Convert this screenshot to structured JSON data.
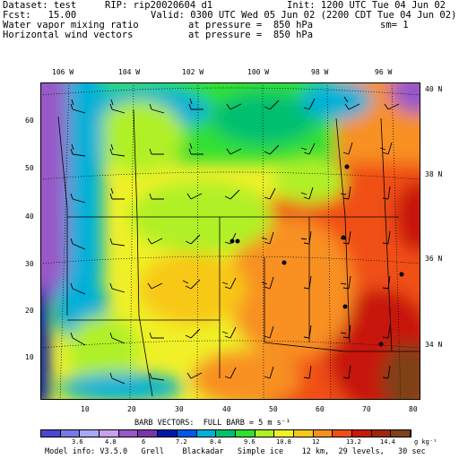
{
  "header": {
    "dataset": "Dataset: test",
    "rip": "RIP: rip20020604 d1",
    "init": "Init: 1200 UTC Tue 04 Jun 02",
    "fcst": "Fcst:   15.00",
    "valid": "Valid: 0300 UTC Wed 05 Jun 02 (2200 CDT Tue 04 Jun 02)",
    "field1": "Water vapor mixing ratio",
    "pressure1": "at pressure =  850 hPa",
    "sm": "sm= 1",
    "field2": "Horizontal wind vectors",
    "pressure2": "at pressure =  850 hPa"
  },
  "map": {
    "lon_labels": [
      "106 W",
      "104 W",
      "102 W",
      "100 W",
      "98 W",
      "96 W"
    ],
    "lat_labels": [
      "40 N",
      "38 N",
      "36 N",
      "34 N"
    ],
    "y_ticks": [
      "60",
      "50",
      "40",
      "30",
      "20",
      "10"
    ],
    "x_ticks": [
      "10",
      "20",
      "30",
      "40",
      "50",
      "60",
      "70",
      "80"
    ]
  },
  "colorbar": {
    "title": "BARB VECTORS:  FULL BARB = 5 m s⁻¹",
    "colors": [
      "#4848d0",
      "#7878e8",
      "#a8a8f8",
      "#c8a0f0",
      "#9858c8",
      "#7838a8",
      "#0018a8",
      "#0058e8",
      "#00b0d8",
      "#00c070",
      "#30e030",
      "#b0f028",
      "#f0f028",
      "#f8c818",
      "#f89020",
      "#f05018",
      "#c81808",
      "#a02808",
      "#804018"
    ],
    "labels": [
      "3.6",
      "4.8",
      "6",
      "7.2",
      "8.4",
      "9.6",
      "10.8",
      "12",
      "13.2",
      "14.4",
      "g kg⁻¹"
    ]
  },
  "footer": {
    "model_info": "Model info: V3.5.0   Grell    Blackadar   Simple ice    12 km,  29 levels,   30 sec"
  }
}
